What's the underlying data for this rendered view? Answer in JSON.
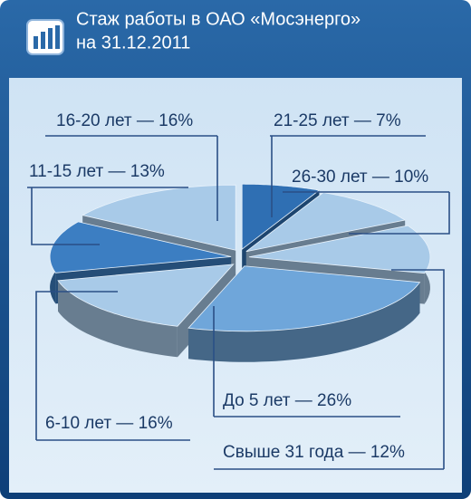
{
  "chart_data": {
    "type": "pie",
    "title": "Стаж работы в ОАО «Мосэнерго»",
    "subtitle": "на 31.12.2011",
    "values": [
      7,
      10,
      12,
      26,
      16,
      13,
      16
    ],
    "value_labels": [
      "21-25 лет — 7%",
      "26-30 лет — 10%",
      "Свыше 31 года — 12%",
      "До 5 лет — 26%",
      "6-10 лет — 16%",
      "11-15 лет — 13%",
      "16-20 лет — 16%"
    ],
    "colors": [
      "#2f6fb3",
      "#a8cae8",
      "#a8cae8",
      "#6fa6da",
      "#a8cae8",
      "#3c7ec2",
      "#a8cae8"
    ]
  }
}
